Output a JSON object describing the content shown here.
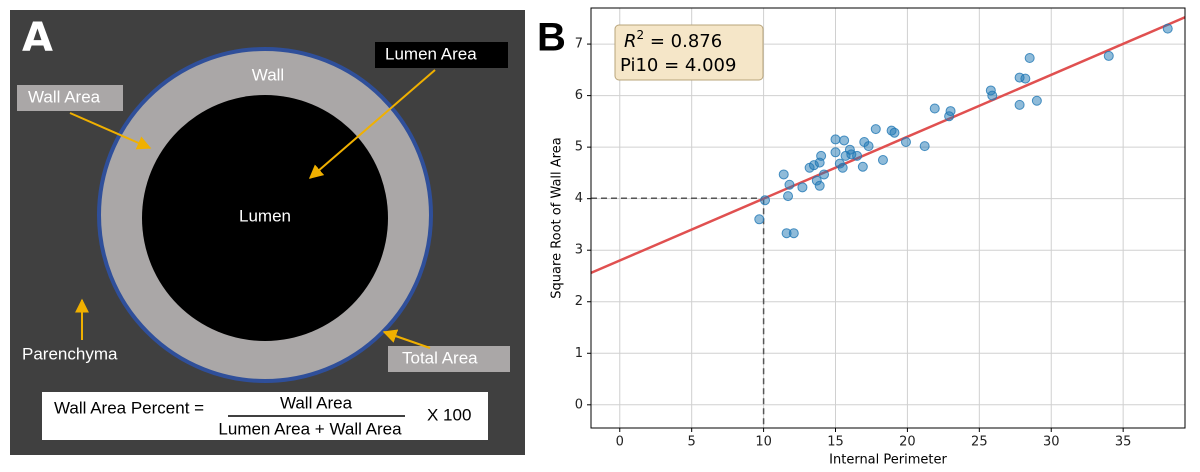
{
  "panel_a": {
    "letter": "A",
    "wall": "Wall",
    "wall_area": "Wall Area",
    "lumen_area": "Lumen Area",
    "lumen": "Lumen",
    "parenchyma": "Parenchyma",
    "total_area": "Total Area",
    "formula": {
      "lhs": "Wall Area Percent =",
      "numerator": "Wall Area",
      "denominator": "Lumen Area + Wall Area",
      "multiplier": "X 100"
    }
  },
  "chart_data": {
    "type": "scatter",
    "panel_label": "B",
    "x_label": "Internal Perimeter",
    "y_label": "Square Root of Wall Area",
    "annotation": {
      "r2": {
        "symbol": "R",
        "exponent": "2",
        "text": " = 0.876"
      },
      "pi10": "Pi10 = 4.009"
    },
    "x": [
      9.7,
      10.1,
      11.4,
      11.6,
      11.7,
      11.8,
      12.1,
      12.7,
      13.2,
      13.5,
      13.7,
      13.9,
      13.9,
      14.0,
      14.2,
      15.0,
      15.0,
      15.3,
      15.5,
      15.6,
      15.7,
      16.0,
      16.1,
      16.5,
      16.9,
      17.0,
      17.3,
      17.8,
      18.3,
      18.9,
      19.1,
      19.9,
      21.2,
      21.9,
      22.9,
      23.0,
      25.8,
      25.9,
      27.8,
      27.8,
      28.2,
      28.5,
      29.0,
      34.0,
      38.1
    ],
    "values": [
      3.6,
      3.97,
      4.47,
      3.33,
      4.05,
      4.27,
      3.33,
      4.22,
      4.6,
      4.65,
      4.35,
      4.25,
      4.7,
      4.83,
      4.47,
      4.9,
      5.15,
      4.68,
      4.6,
      5.13,
      4.83,
      4.95,
      4.86,
      4.83,
      4.62,
      5.1,
      5.02,
      5.35,
      4.75,
      5.32,
      5.28,
      5.1,
      5.02,
      5.75,
      5.6,
      5.7,
      6.1,
      6.0,
      5.82,
      6.35,
      6.33,
      6.73,
      5.9,
      6.77,
      7.3
    ],
    "color": "#1f77b4",
    "fit_line": {
      "x": [
        -2,
        39.3
      ],
      "y": [
        2.56,
        7.52
      ],
      "color": "#e05050"
    },
    "guide": {
      "x": 10,
      "y": 4.009
    },
    "xlim": [
      -2,
      39.3
    ],
    "ylim": [
      -0.45,
      7.7
    ],
    "xticks": [
      0,
      5,
      10,
      15,
      20,
      25,
      30,
      35
    ],
    "yticks": [
      0,
      1,
      2,
      3,
      4,
      5,
      6,
      7
    ],
    "grid": true
  }
}
